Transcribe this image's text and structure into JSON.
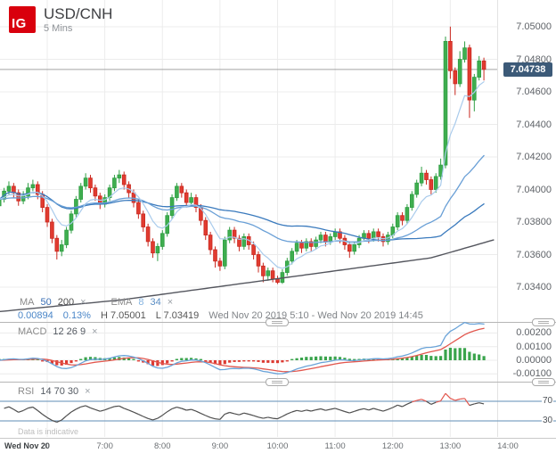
{
  "ui": {
    "close_glyph": "×"
  },
  "header": {
    "logo": "IG",
    "symbol": "USD/CNH",
    "interval": "5 Mins"
  },
  "legend": {
    "ma": {
      "label": "MA",
      "v1": "50",
      "v2": "200"
    },
    "ema": {
      "label": "EMA",
      "v1": "8",
      "v2": "34"
    }
  },
  "info": {
    "change": "0.00894",
    "change_pct": "0.13%",
    "high_label": "H",
    "high_value": "7.05001",
    "low_label": "L",
    "low_value": "7.03419",
    "range": "Wed Nov 20 2019 5:10 - Wed Nov 20 2019 14:45"
  },
  "macd_panel": {
    "label": "MACD",
    "params": "12 26 9"
  },
  "rsi_panel": {
    "label": "RSI",
    "params": "14 70 30",
    "upper": "70",
    "lower": "30"
  },
  "footer": {
    "note": "Data is indicative",
    "date": "Wed Nov 20"
  },
  "price_tag": "7.04738",
  "chart_data": {
    "type": "candlestick+indicators",
    "instrument": "USD/CNH",
    "interval": "5 Mins",
    "start_time": "05:10",
    "interval_min": 5,
    "session_high": 7.05001,
    "session_low": 7.03419,
    "last_price": 7.04738,
    "change": 0.00894,
    "change_pct": 0.13,
    "ylim": [
      7.033,
      7.0505
    ],
    "grid": true,
    "price_axis": {
      "ticks": [
        {
          "v": 7.05,
          "label": "7.05000"
        },
        {
          "v": 7.048,
          "label": "7.04800"
        },
        {
          "v": 7.046,
          "label": "7.04600"
        },
        {
          "v": 7.044,
          "label": "7.04400"
        },
        {
          "v": 7.042,
          "label": "7.04200"
        },
        {
          "v": 7.04,
          "label": "7.04000"
        },
        {
          "v": 7.038,
          "label": "7.03800"
        },
        {
          "v": 7.036,
          "label": "7.03600"
        },
        {
          "v": 7.034,
          "label": "7.03400"
        }
      ]
    },
    "time_axis": {
      "ticks": [
        {
          "h": 6,
          "label": "0"
        },
        {
          "h": 7,
          "label": "7:00"
        },
        {
          "h": 8,
          "label": "8:00"
        },
        {
          "h": 9,
          "label": "9:00"
        },
        {
          "h": 10,
          "label": "10:00"
        },
        {
          "h": 11,
          "label": "11:00"
        },
        {
          "h": 12,
          "label": "12:00"
        },
        {
          "h": 13,
          "label": "13:00"
        },
        {
          "h": 14,
          "label": "14:00"
        }
      ]
    },
    "macd_axis": [
      {
        "v": 0.002,
        "label": "0.00200"
      },
      {
        "v": 0.001,
        "label": "0.00100"
      },
      {
        "v": 0.0,
        "label": "0.00000"
      },
      {
        "v": -0.001,
        "label": "-0.00100"
      }
    ],
    "overlays": {
      "ma_periods": [
        50,
        200
      ],
      "ema_periods": [
        8,
        34
      ]
    },
    "macd_params": [
      12,
      26,
      9
    ],
    "rsi_params": {
      "period": 14,
      "upper": 70,
      "lower": 30
    },
    "ma200_anchors": [
      [
        0,
        7.0325
      ],
      [
        25,
        7.0332
      ],
      [
        50,
        7.0342
      ],
      [
        70,
        7.035
      ],
      [
        90,
        7.0358
      ],
      [
        103,
        7.0369
      ]
    ],
    "ohlc_format": [
      "open",
      "high",
      "low",
      "close"
    ],
    "candles": [
      [
        7.039,
        7.0397,
        7.0388,
        7.0394
      ],
      [
        7.0394,
        7.0401,
        7.0392,
        7.0399
      ],
      [
        7.0399,
        7.0405,
        7.0397,
        7.0402
      ],
      [
        7.0402,
        7.0404,
        7.0395,
        7.0398
      ],
      [
        7.0398,
        7.04,
        7.039,
        7.0393
      ],
      [
        7.0393,
        7.0399,
        7.0391,
        7.0396
      ],
      [
        7.0396,
        7.0404,
        7.0394,
        7.0401
      ],
      [
        7.0401,
        7.0406,
        7.0399,
        7.0403
      ],
      [
        7.0403,
        7.0405,
        7.0394,
        7.0397
      ],
      [
        7.0397,
        7.0399,
        7.0386,
        7.0389
      ],
      [
        7.0389,
        7.0391,
        7.0377,
        7.038
      ],
      [
        7.038,
        7.0382,
        7.0367,
        7.037
      ],
      [
        7.037,
        7.0372,
        7.0357,
        7.0362
      ],
      [
        7.0362,
        7.0369,
        7.0359,
        7.0366
      ],
      [
        7.0366,
        7.0377,
        7.0364,
        7.0375
      ],
      [
        7.0375,
        7.0387,
        7.0373,
        7.0385
      ],
      [
        7.0385,
        7.0396,
        7.0383,
        7.0394
      ],
      [
        7.0394,
        7.0404,
        7.0392,
        7.0402
      ],
      [
        7.0402,
        7.041,
        7.04,
        7.0407
      ],
      [
        7.0407,
        7.0409,
        7.0398,
        7.0401
      ],
      [
        7.0401,
        7.0403,
        7.0393,
        7.0396
      ],
      [
        7.0396,
        7.0398,
        7.0388,
        7.0391
      ],
      [
        7.0391,
        7.0397,
        7.0389,
        7.0395
      ],
      [
        7.0395,
        7.0403,
        7.0393,
        7.0401
      ],
      [
        7.0401,
        7.0409,
        7.0399,
        7.0407
      ],
      [
        7.0407,
        7.0412,
        7.0404,
        7.0409
      ],
      [
        7.0409,
        7.0411,
        7.04,
        7.0403
      ],
      [
        7.0403,
        7.0405,
        7.0395,
        7.0398
      ],
      [
        7.0398,
        7.04,
        7.0389,
        7.0392
      ],
      [
        7.0392,
        7.0394,
        7.0382,
        7.0385
      ],
      [
        7.0385,
        7.0387,
        7.0374,
        7.0377
      ],
      [
        7.0377,
        7.0379,
        7.0365,
        7.0368
      ],
      [
        7.0368,
        7.037,
        7.0358,
        7.0361
      ],
      [
        7.0361,
        7.0367,
        7.0356,
        7.0365
      ],
      [
        7.0365,
        7.0375,
        7.0363,
        7.0373
      ],
      [
        7.0373,
        7.0386,
        7.0371,
        7.0384
      ],
      [
        7.0384,
        7.0397,
        7.0382,
        7.0395
      ],
      [
        7.0395,
        7.0404,
        7.0393,
        7.0402
      ],
      [
        7.0402,
        7.0404,
        7.0395,
        7.0398
      ],
      [
        7.0398,
        7.04,
        7.0389,
        7.0392
      ],
      [
        7.0392,
        7.0398,
        7.039,
        7.0395
      ],
      [
        7.0395,
        7.0397,
        7.0386,
        7.0389
      ],
      [
        7.0389,
        7.0391,
        7.0378,
        7.0381
      ],
      [
        7.0381,
        7.0383,
        7.0369,
        7.0372
      ],
      [
        7.0372,
        7.0374,
        7.036,
        7.0363
      ],
      [
        7.0363,
        7.0365,
        7.0352,
        7.0356
      ],
      [
        7.0356,
        7.0358,
        7.035,
        7.0353
      ],
      [
        7.0353,
        7.0371,
        7.0351,
        7.0369
      ],
      [
        7.0369,
        7.0377,
        7.0367,
        7.0375
      ],
      [
        7.0375,
        7.0377,
        7.0367,
        7.037
      ],
      [
        7.037,
        7.0372,
        7.0362,
        7.0365
      ],
      [
        7.0365,
        7.0373,
        7.0363,
        7.0371
      ],
      [
        7.0371,
        7.0373,
        7.0363,
        7.0366
      ],
      [
        7.0366,
        7.0368,
        7.0357,
        7.036
      ],
      [
        7.036,
        7.0362,
        7.0349,
        7.0353
      ],
      [
        7.0353,
        7.0355,
        7.0343,
        7.0347
      ],
      [
        7.0347,
        7.0352,
        7.0344,
        7.035
      ],
      [
        7.035,
        7.0352,
        7.0343,
        7.0345
      ],
      [
        7.0345,
        7.0347,
        7.03419,
        7.0343
      ],
      [
        7.0343,
        7.0351,
        7.0342,
        7.0349
      ],
      [
        7.0349,
        7.0358,
        7.0347,
        7.0356
      ],
      [
        7.0356,
        7.0364,
        7.0354,
        7.0362
      ],
      [
        7.0362,
        7.0369,
        7.036,
        7.0367
      ],
      [
        7.0367,
        7.0369,
        7.0361,
        7.0364
      ],
      [
        7.0364,
        7.037,
        7.0362,
        7.0368
      ],
      [
        7.0368,
        7.037,
        7.0362,
        7.0365
      ],
      [
        7.0365,
        7.0371,
        7.0363,
        7.0369
      ],
      [
        7.0369,
        7.0374,
        7.0367,
        7.0372
      ],
      [
        7.0372,
        7.0374,
        7.0365,
        7.0368
      ],
      [
        7.0368,
        7.0373,
        7.0366,
        7.0371
      ],
      [
        7.0371,
        7.0376,
        7.0369,
        7.0374
      ],
      [
        7.0374,
        7.0376,
        7.0367,
        7.037
      ],
      [
        7.037,
        7.0372,
        7.0363,
        7.0366
      ],
      [
        7.0366,
        7.0368,
        7.0358,
        7.0362
      ],
      [
        7.0362,
        7.0368,
        7.036,
        7.0366
      ],
      [
        7.0366,
        7.0372,
        7.0364,
        7.037
      ],
      [
        7.037,
        7.0375,
        7.0368,
        7.0373
      ],
      [
        7.0373,
        7.0375,
        7.0367,
        7.037
      ],
      [
        7.037,
        7.0376,
        7.0368,
        7.0374
      ],
      [
        7.0374,
        7.0376,
        7.0368,
        7.0371
      ],
      [
        7.0371,
        7.0373,
        7.0365,
        7.0368
      ],
      [
        7.0368,
        7.0374,
        7.0366,
        7.0372
      ],
      [
        7.0372,
        7.0379,
        7.037,
        7.0377
      ],
      [
        7.0377,
        7.0386,
        7.0375,
        7.0384
      ],
      [
        7.0384,
        7.0386,
        7.0378,
        7.0381
      ],
      [
        7.0381,
        7.0391,
        7.0379,
        7.0389
      ],
      [
        7.0389,
        7.0399,
        7.0387,
        7.0397
      ],
      [
        7.0397,
        7.0406,
        7.0395,
        7.0404
      ],
      [
        7.0404,
        7.0414,
        7.0402,
        7.041
      ],
      [
        7.041,
        7.0412,
        7.0403,
        7.0406
      ],
      [
        7.0406,
        7.0408,
        7.0397,
        7.04
      ],
      [
        7.04,
        7.041,
        7.0398,
        7.0408
      ],
      [
        7.0408,
        7.0419,
        7.0406,
        7.0415
      ],
      [
        7.0415,
        7.0494,
        7.0413,
        7.0491
      ],
      [
        7.0491,
        7.05001,
        7.0468,
        7.0473
      ],
      [
        7.0473,
        7.0475,
        7.0458,
        7.0465
      ],
      [
        7.0465,
        7.0485,
        7.0463,
        7.048
      ],
      [
        7.048,
        7.0491,
        7.0478,
        7.0487
      ],
      [
        7.0487,
        7.0489,
        7.0444,
        7.0455
      ],
      [
        7.0455,
        7.0471,
        7.0448,
        7.0469
      ],
      [
        7.0469,
        7.0482,
        7.0467,
        7.0479
      ],
      [
        7.0479,
        7.0481,
        7.0467,
        7.04738
      ]
    ],
    "colors": {
      "up_fill": "#3fae4f",
      "up_border": "#2f9e43",
      "down_fill": "#e13b30",
      "down_border": "#c9281f",
      "ema8": "#a9cbec",
      "ema34": "#699fd6",
      "ma50": "#3a7abd",
      "ma200": "#54565e",
      "macd_line": "#6aa3d8",
      "macd_signal": "#e2574e",
      "hist_up": "#3aa44c",
      "hist_down": "#dd3b33",
      "rsi_line": "#4d4d4d",
      "rsi_hot": "#e2574e",
      "rsi_band": "#7fa3c4",
      "grid": "#ececec",
      "price_line": "#a3a3a3",
      "divider": "#b5b5b5",
      "tag_bg": "#3c5a78",
      "logo_bg": "#d9000d"
    }
  }
}
